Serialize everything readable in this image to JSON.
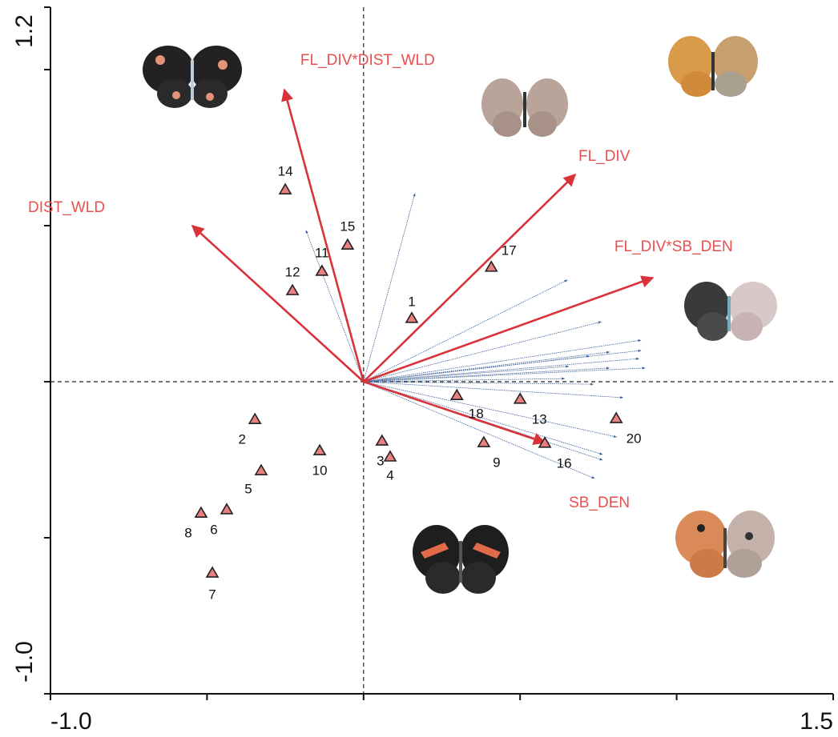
{
  "chart_data": {
    "type": "biplot",
    "xlim": [
      -1.0,
      1.5
    ],
    "ylim": [
      -1.0,
      1.2
    ],
    "xticks": [
      {
        "value": -1.0,
        "label": "-1.0"
      },
      {
        "value": -0.5,
        "label": null
      },
      {
        "value": 0,
        "label": null
      },
      {
        "value": 0.5,
        "label": null
      },
      {
        "value": 1.0,
        "label": null
      },
      1.5
    ],
    "yticks": [
      {
        "value": -1.0,
        "label": "-1.0"
      },
      {
        "value": -0.5,
        "label": null
      },
      {
        "value": 0,
        "label": null
      },
      {
        "value": 0.5,
        "label": null
      },
      {
        "value": 1.0,
        "label": null
      },
      1.2
    ],
    "sites": {
      "color": "#e88080",
      "labels": [
        "1",
        "2",
        "3",
        "4",
        "5",
        "6",
        "7",
        "8",
        "9",
        "10",
        "11",
        "12",
        "13",
        "14",
        "15",
        "16",
        "17",
        "18",
        "20"
      ],
      "x": [
        0.154,
        -0.347,
        0.059,
        0.085,
        -0.327,
        -0.437,
        -0.483,
        -0.519,
        0.384,
        -0.14,
        -0.133,
        -0.227,
        0.5,
        -0.25,
        -0.051,
        0.579,
        0.408,
        0.298,
        0.807
      ],
      "y": [
        0.203,
        -0.121,
        -0.19,
        -0.241,
        -0.285,
        -0.41,
        -0.613,
        -0.421,
        -0.195,
        -0.221,
        0.354,
        0.292,
        -0.056,
        0.615,
        0.438,
        -0.197,
        0.367,
        -0.044,
        -0.118
      ]
    },
    "variables": {
      "color": "#d9323a",
      "names": [
        "DIST_WLD",
        "FL_DIV*DIST_WLD",
        "FL_DIV",
        "FL_DIV*SB_DEN",
        "SB_DEN"
      ],
      "x": [
        -0.547,
        -0.253,
        0.676,
        0.924,
        0.579
      ],
      "y": [
        0.5,
        0.936,
        0.664,
        0.333,
        -0.195
      ]
    },
    "species": {
      "color": "#3a5f9a",
      "x": [
        0.164,
        -0.184,
        0.651,
        0.759,
        0.886,
        0.886,
        0.88,
        0.899,
        0.785,
        0.721,
        0.785,
        0.734,
        0.829,
        0.808,
        0.763,
        0.763,
        0.738,
        0.655,
        0.642
      ],
      "y": [
        0.603,
        0.485,
        0.326,
        0.192,
        0.133,
        0.1,
        0.074,
        0.044,
        0.095,
        0.082,
        0.044,
        -0.008,
        -0.051,
        -0.177,
        -0.233,
        -0.251,
        -0.31,
        0.049,
        0.01
      ]
    }
  }
}
